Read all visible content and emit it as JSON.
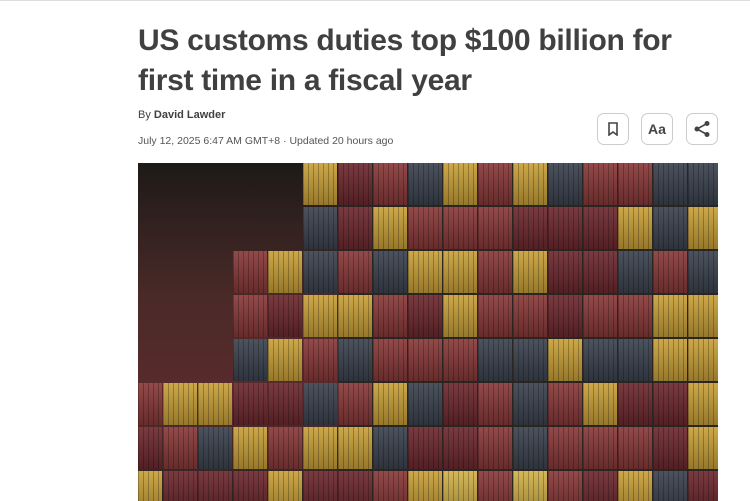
{
  "article": {
    "title": "US customs duties top $100 billion for first time in a fiscal year",
    "byline_prefix": "By",
    "author": "David Lawder",
    "date": "July 12, 2025 6:47 AM GMT+8 · Updated 20 hours ago"
  },
  "actions": {
    "bookmark_icon": "bookmark-icon",
    "text_size_label": "Aa",
    "share_icon": "share-icon"
  },
  "photo": {
    "subject": "stacked shipping containers",
    "colors": [
      "#c9a13a",
      "#8a3a3a",
      "#6e2a30",
      "#3d4450",
      "#d2b24a"
    ]
  }
}
